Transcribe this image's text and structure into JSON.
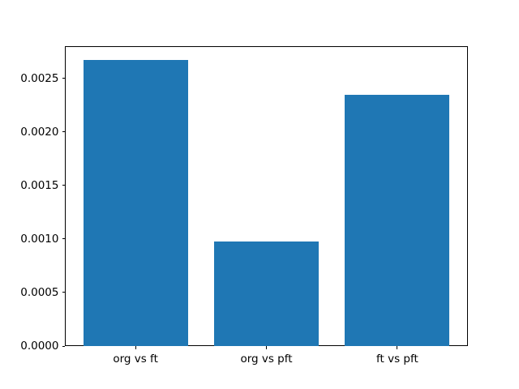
{
  "chart_data": {
    "type": "bar",
    "title": "",
    "xlabel": "",
    "ylabel": "",
    "categories": [
      "org vs ft",
      "org vs pft",
      "ft vs pft"
    ],
    "values": [
      0.00267,
      0.00098,
      0.00235
    ],
    "ylim": [
      0,
      0.0028
    ],
    "yticks": [
      {
        "value": 0.0,
        "label": "0.0000"
      },
      {
        "value": 0.0005,
        "label": "0.0005"
      },
      {
        "value": 0.001,
        "label": "0.0010"
      },
      {
        "value": 0.0015,
        "label": "0.0015"
      },
      {
        "value": 0.002,
        "label": "0.0020"
      },
      {
        "value": 0.0025,
        "label": "0.0025"
      }
    ],
    "bar_color": "#1f77b4",
    "bar_width_units": 0.8,
    "x_margin_fraction": 0.05,
    "spine_color": "#000000",
    "background_color": "#ffffff",
    "grid": false,
    "legend": null
  }
}
